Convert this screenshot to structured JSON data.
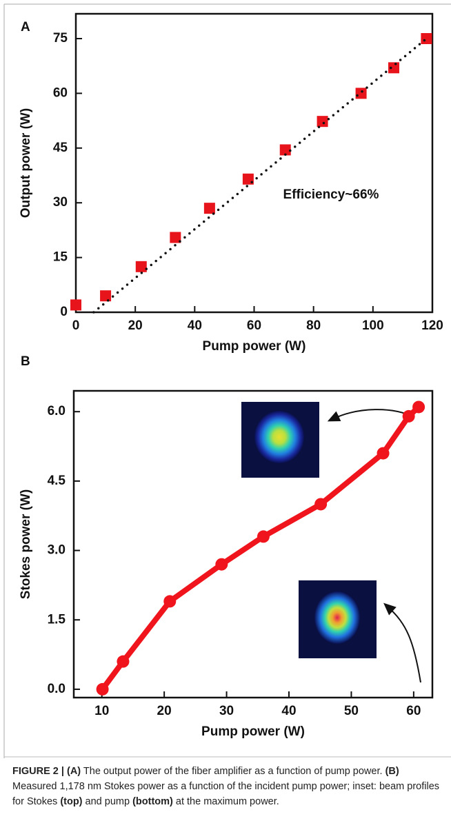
{
  "chart_data": [
    {
      "type": "scatter",
      "panel": "A",
      "xlabel": "Pump power (W)",
      "ylabel": "Output power (W)",
      "annotation": "Efficiency~66%",
      "xlim": [
        0,
        120
      ],
      "ylim": [
        0,
        81.8
      ],
      "xticks": [
        0,
        20,
        40,
        60,
        80,
        100,
        120
      ],
      "yticks": [
        0,
        15,
        30,
        45,
        60,
        75
      ],
      "series": [
        {
          "color": "#e8141c",
          "marker": "square",
          "x": [
            0,
            10,
            22,
            33.5,
            45,
            58,
            70.5,
            83,
            96,
            107,
            118
          ],
          "values": [
            2,
            4.5,
            12.5,
            20.5,
            28.5,
            36.5,
            44.5,
            52.3,
            60,
            67,
            75
          ]
        },
        {
          "color": "#111111",
          "line": "dotted",
          "x": [
            6,
            118
          ],
          "values": [
            0,
            75
          ]
        }
      ]
    },
    {
      "type": "line",
      "panel": "B",
      "xlabel": "Pump power (W)",
      "ylabel": "Stokes power (W)",
      "xlim": [
        5.5,
        63
      ],
      "ylim": [
        -0.18,
        6.45
      ],
      "xticks": [
        10,
        20,
        30,
        40,
        50,
        60
      ],
      "yticks": [
        {
          "value": 0,
          "label": "0.0"
        },
        1.5,
        {
          "value": 3,
          "label": "3.0"
        },
        4.5,
        {
          "value": 6,
          "label": "6.0"
        }
      ],
      "x": [
        10.1,
        13.4,
        20.9,
        29.2,
        35.9,
        45.1,
        55.1,
        59.2,
        60.8
      ],
      "series": [
        {
          "color": "#f0141c",
          "values": [
            0,
            0.6,
            1.9,
            2.7,
            3.3,
            4.0,
            5.1,
            5.9,
            6.1
          ]
        }
      ]
    }
  ],
  "caption": {
    "runs": [
      {
        "text": "FIGURE 2 | (A)",
        "bold": true
      },
      {
        "text": " The output power of the fiber amplifier as a function of pump power. ",
        "bold": false
      },
      {
        "text": "(B)",
        "bold": true
      },
      {
        "text": " Measured 1,178 nm Stokes power as a function of the incident pump power; inset: beam profiles for Stokes ",
        "bold": false
      },
      {
        "text": "(top)",
        "bold": true
      },
      {
        "text": " and pump ",
        "bold": false
      },
      {
        "text": "(bottom)",
        "bold": true
      },
      {
        "text": " at the maximum power.",
        "bold": false
      }
    ]
  }
}
